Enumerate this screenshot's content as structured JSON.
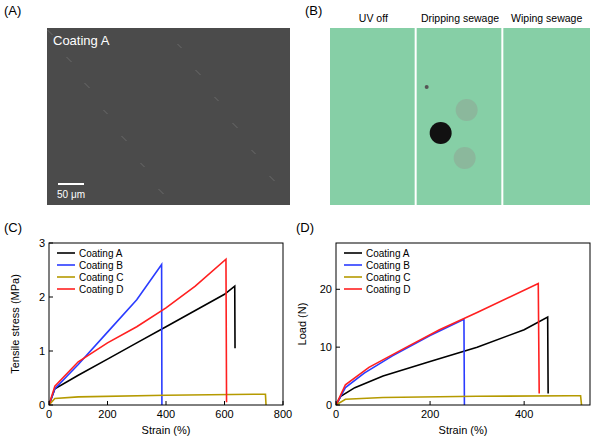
{
  "panel_a": {
    "letter": "(A)",
    "label": "Coating A",
    "scale_bar": "50 μm"
  },
  "panel_b": {
    "letter": "(B)",
    "captions": [
      "UV off",
      "Dripping sewage",
      "Wiping sewage"
    ]
  },
  "chart_data": [
    {
      "type": "line",
      "title": "(C)",
      "x_label": "Strain (%)",
      "y_label": "Tensile stress (MPa)",
      "xlim": [
        0,
        800
      ],
      "xticks": [
        0,
        200,
        400,
        600,
        800
      ],
      "ylim": [
        0,
        3
      ],
      "yticks": [
        0,
        1,
        2,
        3
      ],
      "grid": false,
      "legend": "upper left",
      "series": [
        {
          "name": "Coating A",
          "color": "#000000",
          "x": [
            0,
            20,
            100,
            200,
            300,
            400,
            500,
            600,
            635,
            636
          ],
          "values": [
            0,
            0.3,
            0.55,
            0.85,
            1.15,
            1.45,
            1.75,
            2.05,
            2.2,
            1.05
          ]
        },
        {
          "name": "Coating B",
          "color": "#2a3cff",
          "x": [
            0,
            20,
            100,
            200,
            300,
            385,
            386
          ],
          "values": [
            0,
            0.3,
            0.75,
            1.35,
            1.95,
            2.6,
            0
          ]
        },
        {
          "name": "Coating C",
          "color": "#b59a00",
          "x": [
            0,
            20,
            100,
            400,
            700,
            740,
            742
          ],
          "values": [
            0,
            0.12,
            0.15,
            0.18,
            0.2,
            0.2,
            0
          ]
        },
        {
          "name": "Coating D",
          "color": "#ff2020",
          "x": [
            0,
            20,
            100,
            200,
            300,
            400,
            500,
            605,
            607
          ],
          "values": [
            0,
            0.35,
            0.8,
            1.15,
            1.45,
            1.8,
            2.2,
            2.7,
            0.05
          ]
        }
      ]
    },
    {
      "type": "line",
      "title": "(D)",
      "x_label": "Strain (%)",
      "y_label": "Load (N)",
      "xlim": [
        0,
        540
      ],
      "xticks": [
        0,
        200,
        400
      ],
      "ylim": [
        0,
        28
      ],
      "yticks": [
        0,
        10,
        20
      ],
      "grid": false,
      "legend": "upper left",
      "series": [
        {
          "name": "Coating A",
          "color": "#000000",
          "x": [
            0,
            10,
            40,
            100,
            200,
            300,
            400,
            450,
            451
          ],
          "values": [
            0,
            1.5,
            3,
            5,
            7.5,
            10,
            13,
            15.2,
            2
          ]
        },
        {
          "name": "Coating B",
          "color": "#2a3cff",
          "x": [
            0,
            20,
            60,
            120,
            200,
            272,
            273
          ],
          "values": [
            0,
            3,
            5.5,
            8.5,
            12,
            14.8,
            0
          ]
        },
        {
          "name": "Coating C",
          "color": "#b59a00",
          "x": [
            0,
            20,
            100,
            300,
            500,
            520,
            522
          ],
          "values": [
            0,
            1,
            1.3,
            1.5,
            1.6,
            1.6,
            0
          ]
        },
        {
          "name": "Coating D",
          "color": "#ff2020",
          "x": [
            0,
            20,
            70,
            150,
            220,
            300,
            430,
            432
          ],
          "values": [
            0,
            3.5,
            6.5,
            10,
            13,
            16,
            21,
            2
          ]
        }
      ]
    }
  ]
}
